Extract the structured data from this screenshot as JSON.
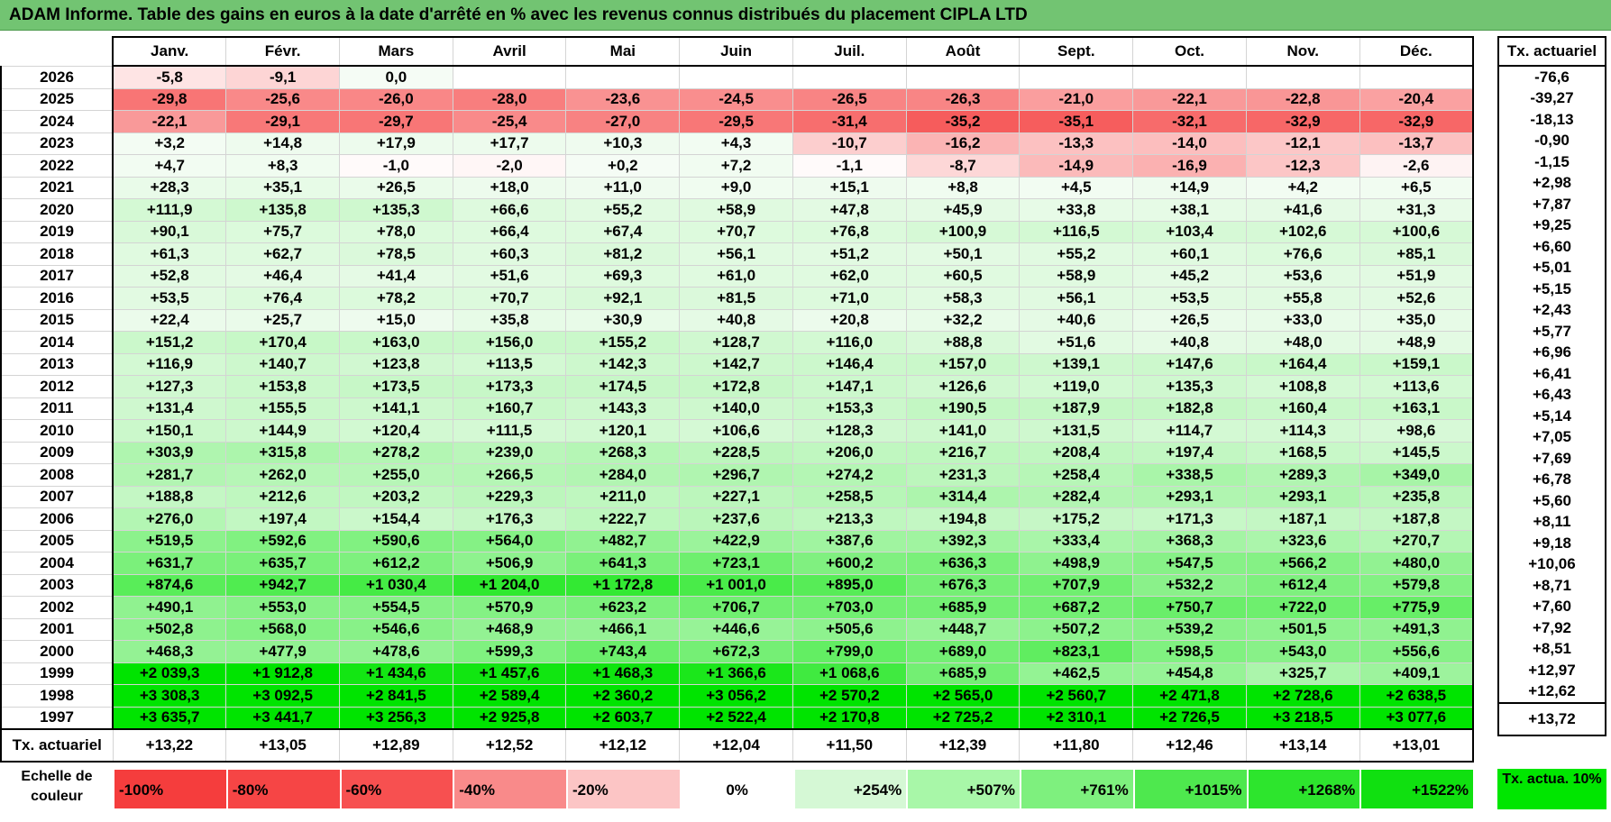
{
  "title": "ADAM Informe. Table des gains en euros à la date d'arrêté en % avec les revenus connus distribués du placement CIPLA LTD",
  "months": [
    "Janv.",
    "Févr.",
    "Mars",
    "Avril",
    "Mai",
    "Juin",
    "Juil.",
    "Août",
    "Sept.",
    "Oct.",
    "Nov.",
    "Déc."
  ],
  "side_header": "Tx. actuariel",
  "rows": [
    {
      "year": "2026",
      "values": [
        "-5,8",
        "-9,1",
        "0,0",
        "",
        "",
        "",
        "",
        "",
        "",
        "",
        "",
        ""
      ],
      "tx": "-76,6"
    },
    {
      "year": "2025",
      "values": [
        "-29,8",
        "-25,6",
        "-26,0",
        "-28,0",
        "-23,6",
        "-24,5",
        "-26,5",
        "-26,3",
        "-21,0",
        "-22,1",
        "-22,8",
        "-20,4"
      ],
      "tx": "-39,27"
    },
    {
      "year": "2024",
      "values": [
        "-22,1",
        "-29,1",
        "-29,7",
        "-25,4",
        "-27,0",
        "-29,5",
        "-31,4",
        "-35,2",
        "-35,1",
        "-32,1",
        "-32,9",
        "-32,9"
      ],
      "tx": "-18,13"
    },
    {
      "year": "2023",
      "values": [
        "+3,2",
        "+14,8",
        "+17,9",
        "+17,7",
        "+10,3",
        "+4,3",
        "-10,7",
        "-16,2",
        "-13,3",
        "-14,0",
        "-12,1",
        "-13,7"
      ],
      "tx": "-0,90"
    },
    {
      "year": "2022",
      "values": [
        "+4,7",
        "+8,3",
        "-1,0",
        "-2,0",
        "+0,2",
        "+7,2",
        "-1,1",
        "-8,7",
        "-14,9",
        "-16,9",
        "-12,3",
        "-2,6"
      ],
      "tx": "-1,15"
    },
    {
      "year": "2021",
      "values": [
        "+28,3",
        "+35,1",
        "+26,5",
        "+18,0",
        "+11,0",
        "+9,0",
        "+15,1",
        "+8,8",
        "+4,5",
        "+14,9",
        "+4,2",
        "+6,5"
      ],
      "tx": "+2,98"
    },
    {
      "year": "2020",
      "values": [
        "+111,9",
        "+135,8",
        "+135,3",
        "+66,6",
        "+55,2",
        "+58,9",
        "+47,8",
        "+45,9",
        "+33,8",
        "+38,1",
        "+41,6",
        "+31,3"
      ],
      "tx": "+7,87"
    },
    {
      "year": "2019",
      "values": [
        "+90,1",
        "+75,7",
        "+78,0",
        "+66,4",
        "+67,4",
        "+70,7",
        "+76,8",
        "+100,9",
        "+116,5",
        "+103,4",
        "+102,6",
        "+100,6"
      ],
      "tx": "+9,25"
    },
    {
      "year": "2018",
      "values": [
        "+61,3",
        "+62,7",
        "+78,5",
        "+60,3",
        "+81,2",
        "+56,1",
        "+51,2",
        "+50,1",
        "+55,2",
        "+60,1",
        "+76,6",
        "+85,1"
      ],
      "tx": "+6,60"
    },
    {
      "year": "2017",
      "values": [
        "+52,8",
        "+46,4",
        "+41,4",
        "+51,6",
        "+69,3",
        "+61,0",
        "+62,0",
        "+60,5",
        "+58,9",
        "+45,2",
        "+53,6",
        "+51,9"
      ],
      "tx": "+5,01"
    },
    {
      "year": "2016",
      "values": [
        "+53,5",
        "+76,4",
        "+78,2",
        "+70,7",
        "+92,1",
        "+81,5",
        "+71,0",
        "+58,3",
        "+56,1",
        "+53,5",
        "+55,8",
        "+52,6"
      ],
      "tx": "+5,15"
    },
    {
      "year": "2015",
      "values": [
        "+22,4",
        "+25,7",
        "+15,0",
        "+35,8",
        "+30,9",
        "+40,8",
        "+20,8",
        "+32,2",
        "+40,6",
        "+26,5",
        "+33,0",
        "+35,0"
      ],
      "tx": "+2,43"
    },
    {
      "year": "2014",
      "values": [
        "+151,2",
        "+170,4",
        "+163,0",
        "+156,0",
        "+155,2",
        "+128,7",
        "+116,0",
        "+88,8",
        "+51,6",
        "+40,8",
        "+48,0",
        "+48,9"
      ],
      "tx": "+5,77"
    },
    {
      "year": "2013",
      "values": [
        "+116,9",
        "+140,7",
        "+123,8",
        "+113,5",
        "+142,3",
        "+142,7",
        "+146,4",
        "+157,0",
        "+139,1",
        "+147,6",
        "+164,4",
        "+159,1"
      ],
      "tx": "+6,96"
    },
    {
      "year": "2012",
      "values": [
        "+127,3",
        "+153,8",
        "+173,5",
        "+173,3",
        "+174,5",
        "+172,8",
        "+147,1",
        "+126,6",
        "+119,0",
        "+135,3",
        "+108,8",
        "+113,6"
      ],
      "tx": "+6,41"
    },
    {
      "year": "2011",
      "values": [
        "+131,4",
        "+155,5",
        "+141,1",
        "+160,7",
        "+143,3",
        "+140,0",
        "+153,3",
        "+190,5",
        "+187,9",
        "+182,8",
        "+160,4",
        "+163,1"
      ],
      "tx": "+6,43"
    },
    {
      "year": "2010",
      "values": [
        "+150,1",
        "+144,9",
        "+120,4",
        "+111,5",
        "+120,1",
        "+106,6",
        "+128,3",
        "+141,0",
        "+131,5",
        "+114,7",
        "+114,3",
        "+98,6"
      ],
      "tx": "+5,14"
    },
    {
      "year": "2009",
      "values": [
        "+303,9",
        "+315,8",
        "+278,2",
        "+239,0",
        "+268,3",
        "+228,5",
        "+206,0",
        "+216,7",
        "+208,4",
        "+197,4",
        "+168,5",
        "+145,5"
      ],
      "tx": "+7,05"
    },
    {
      "year": "2008",
      "values": [
        "+281,7",
        "+262,0",
        "+255,0",
        "+266,5",
        "+284,0",
        "+296,7",
        "+274,2",
        "+231,3",
        "+258,4",
        "+338,5",
        "+289,3",
        "+349,0"
      ],
      "tx": "+7,69"
    },
    {
      "year": "2007",
      "values": [
        "+188,8",
        "+212,6",
        "+203,2",
        "+229,3",
        "+211,0",
        "+227,1",
        "+258,5",
        "+314,4",
        "+282,4",
        "+293,1",
        "+293,1",
        "+235,8"
      ],
      "tx": "+6,78"
    },
    {
      "year": "2006",
      "values": [
        "+276,0",
        "+197,4",
        "+154,4",
        "+176,3",
        "+222,7",
        "+237,6",
        "+213,3",
        "+194,8",
        "+175,2",
        "+171,3",
        "+187,1",
        "+187,8"
      ],
      "tx": "+5,60"
    },
    {
      "year": "2005",
      "values": [
        "+519,5",
        "+592,6",
        "+590,6",
        "+564,0",
        "+482,7",
        "+422,9",
        "+387,6",
        "+392,3",
        "+333,4",
        "+368,3",
        "+323,6",
        "+270,7"
      ],
      "tx": "+8,11"
    },
    {
      "year": "2004",
      "values": [
        "+631,7",
        "+635,7",
        "+612,2",
        "+506,9",
        "+641,3",
        "+723,1",
        "+600,2",
        "+636,3",
        "+498,9",
        "+547,5",
        "+566,2",
        "+480,0"
      ],
      "tx": "+9,18"
    },
    {
      "year": "2003",
      "values": [
        "+874,6",
        "+942,7",
        "+1 030,4",
        "+1 204,0",
        "+1 172,8",
        "+1 001,0",
        "+895,0",
        "+676,3",
        "+707,9",
        "+532,2",
        "+612,4",
        "+579,8"
      ],
      "tx": "+10,06"
    },
    {
      "year": "2002",
      "values": [
        "+490,1",
        "+553,0",
        "+554,5",
        "+570,9",
        "+623,2",
        "+706,7",
        "+703,0",
        "+685,9",
        "+687,2",
        "+750,7",
        "+722,0",
        "+775,9"
      ],
      "tx": "+8,71"
    },
    {
      "year": "2001",
      "values": [
        "+502,8",
        "+568,0",
        "+546,6",
        "+468,9",
        "+466,1",
        "+446,6",
        "+505,6",
        "+448,7",
        "+507,2",
        "+539,2",
        "+501,5",
        "+491,3"
      ],
      "tx": "+7,60"
    },
    {
      "year": "2000",
      "values": [
        "+468,3",
        "+477,9",
        "+478,6",
        "+599,3",
        "+743,4",
        "+672,3",
        "+799,0",
        "+689,0",
        "+823,1",
        "+598,5",
        "+543,0",
        "+556,6"
      ],
      "tx": "+7,92"
    },
    {
      "year": "1999",
      "values": [
        "+2 039,3",
        "+1 912,8",
        "+1 434,6",
        "+1 457,6",
        "+1 468,3",
        "+1 366,6",
        "+1 068,6",
        "+685,9",
        "+462,5",
        "+454,8",
        "+325,7",
        "+409,1"
      ],
      "tx": "+8,51"
    },
    {
      "year": "1998",
      "values": [
        "+3 308,3",
        "+3 092,5",
        "+2 841,5",
        "+2 589,4",
        "+2 360,2",
        "+3 056,2",
        "+2 570,2",
        "+2 565,0",
        "+2 560,7",
        "+2 471,8",
        "+2 728,6",
        "+2 638,5"
      ],
      "tx": "+12,97"
    },
    {
      "year": "1997",
      "values": [
        "+3 635,7",
        "+3 441,7",
        "+3 256,3",
        "+2 925,8",
        "+2 603,7",
        "+2 522,4",
        "+2 170,8",
        "+2 725,2",
        "+2 310,1",
        "+2 726,5",
        "+3 218,5",
        "+3 077,6"
      ],
      "tx": "+12,62"
    }
  ],
  "footer": {
    "label": "Tx. actuariel",
    "values": [
      "+13,22",
      "+13,05",
      "+12,89",
      "+12,52",
      "+12,12",
      "+12,04",
      "+11,50",
      "+12,39",
      "+11,80",
      "+12,46",
      "+13,14",
      "+13,01"
    ],
    "total": "+13,72"
  },
  "legend": {
    "label": "Echelle de couleur",
    "items": [
      {
        "text": "-100%",
        "color": "#f53d3d",
        "kind": "neg"
      },
      {
        "text": "-80%",
        "color": "#f64545",
        "kind": "neg"
      },
      {
        "text": "-60%",
        "color": "#f75050",
        "kind": "neg"
      },
      {
        "text": "-40%",
        "color": "#f98a8a",
        "kind": "neg"
      },
      {
        "text": "-20%",
        "color": "#fcc5c5",
        "kind": "neg"
      },
      {
        "text": "0%",
        "color": "#ffffff",
        "kind": "zero"
      },
      {
        "text": "+254%",
        "color": "#d5f8d5",
        "kind": "pos"
      },
      {
        "text": "+507%",
        "color": "#a8f7a8",
        "kind": "pos"
      },
      {
        "text": "+761%",
        "color": "#7ef07e",
        "kind": "pos"
      },
      {
        "text": "+1015%",
        "color": "#4ee84e",
        "kind": "pos"
      },
      {
        "text": "+1268%",
        "color": "#2de52d",
        "kind": "pos"
      },
      {
        "text": "+1522%",
        "color": "#10e010",
        "kind": "pos"
      }
    ],
    "side": "Tx. actua. 10%",
    "side_color": "#00e600"
  },
  "colors": {
    "title_bg": "#72c472",
    "negative_max": "#f53d3d",
    "positive_max": "#00e600"
  }
}
